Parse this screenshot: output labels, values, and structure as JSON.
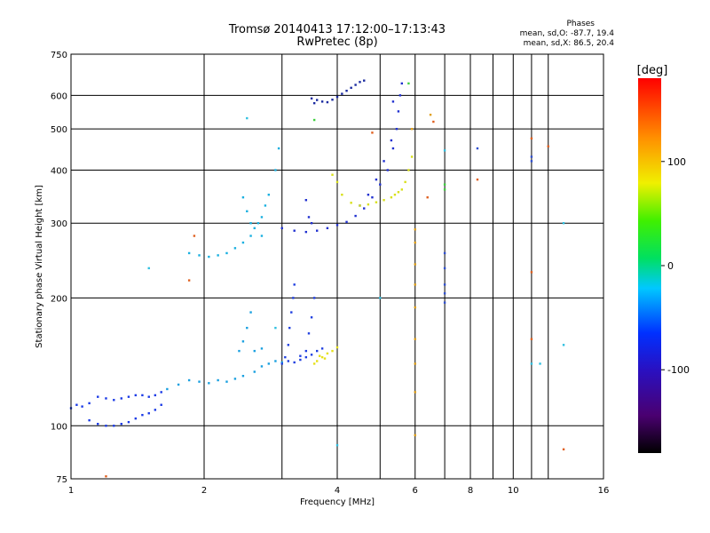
{
  "header": {
    "title_line1": "Tromsø 20140413 17:12:00–17:13:43",
    "title_line2": "RwPretec (8p)",
    "phases_heading": "Phases",
    "phases_o": "mean, sd,O: -87.7, 19.4",
    "phases_x": "mean, sd,X: 86.5, 20.4"
  },
  "colorbar": {
    "unit_label": "[deg]",
    "ticks": [
      100,
      0,
      -100
    ],
    "min": -180,
    "max": 180,
    "scale": "rainbow (black→purple→blue→cyan→green→yellow→orange→red)"
  },
  "chart_data": {
    "type": "scatter",
    "title": "Tromsø 20140413 17:12:00–17:13:43",
    "subtitle": "RwPretec (8p)",
    "xlabel": "Frequency [MHz]",
    "ylabel": "Stationary phase Virtual Height [km]",
    "x_scale": "log",
    "y_scale": "log",
    "xlim": [
      1,
      16
    ],
    "ylim": [
      75,
      750
    ],
    "x_ticks": [
      1,
      2,
      4,
      6,
      8,
      10,
      16
    ],
    "x_tick_labels": [
      "1",
      "2",
      "4",
      "6",
      "8",
      "10",
      "16"
    ],
    "y_ticks": [
      75,
      100,
      200,
      300,
      400,
      500,
      600,
      750
    ],
    "y_tick_labels": [
      "75",
      "100",
      "200",
      "300",
      "400",
      "500",
      "600",
      "750"
    ],
    "x_minor_gridlines": [
      3,
      5,
      7,
      9,
      11,
      12
    ],
    "grid": true,
    "series": [
      {
        "color": "#1a3ae6",
        "points": [
          [
            1.0,
            110
          ],
          [
            1.03,
            112
          ],
          [
            1.06,
            111
          ],
          [
            1.1,
            113
          ],
          [
            1.15,
            117
          ],
          [
            1.2,
            116
          ],
          [
            1.25,
            115
          ],
          [
            1.3,
            116
          ],
          [
            1.35,
            117
          ],
          [
            1.4,
            118
          ],
          [
            1.45,
            118
          ],
          [
            1.5,
            117
          ],
          [
            1.55,
            118
          ],
          [
            1.6,
            120
          ],
          [
            1.1,
            103
          ],
          [
            1.15,
            101
          ],
          [
            1.2,
            100
          ],
          [
            1.25,
            100
          ],
          [
            1.3,
            101
          ],
          [
            1.35,
            102
          ],
          [
            1.4,
            104
          ],
          [
            1.45,
            106
          ],
          [
            1.5,
            107
          ],
          [
            1.55,
            109
          ],
          [
            1.6,
            112
          ]
        ]
      },
      {
        "color": "#1aa0e0",
        "points": [
          [
            1.65,
            122
          ],
          [
            1.75,
            125
          ],
          [
            1.85,
            128
          ],
          [
            1.95,
            127
          ],
          [
            2.05,
            126
          ],
          [
            2.15,
            128
          ],
          [
            2.25,
            127
          ],
          [
            2.35,
            129
          ],
          [
            2.45,
            131
          ],
          [
            2.6,
            134
          ],
          [
            2.7,
            138
          ],
          [
            2.8,
            140
          ],
          [
            2.9,
            142
          ],
          [
            3.0,
            141
          ],
          [
            2.4,
            150
          ],
          [
            2.45,
            158
          ],
          [
            2.5,
            170
          ],
          [
            2.55,
            185
          ],
          [
            2.6,
            150
          ],
          [
            2.7,
            152
          ]
        ]
      },
      {
        "color": "#2040e0",
        "points": [
          [
            3.0,
            140
          ],
          [
            3.05,
            145
          ],
          [
            3.1,
            155
          ],
          [
            3.12,
            170
          ],
          [
            3.15,
            185
          ],
          [
            3.18,
            200
          ],
          [
            3.2,
            215
          ],
          [
            3.3,
            146
          ],
          [
            3.4,
            150
          ],
          [
            3.45,
            165
          ],
          [
            3.5,
            180
          ],
          [
            3.55,
            200
          ],
          [
            3.1,
            142
          ],
          [
            3.2,
            141
          ],
          [
            3.3,
            143
          ],
          [
            3.4,
            145
          ],
          [
            3.5,
            147
          ],
          [
            3.6,
            150
          ],
          [
            3.7,
            152
          ]
        ]
      },
      {
        "color": "#e6e01a",
        "points": [
          [
            3.55,
            140
          ],
          [
            3.6,
            142
          ],
          [
            3.7,
            145
          ],
          [
            3.8,
            148
          ],
          [
            3.9,
            150
          ],
          [
            4.0,
            153
          ],
          [
            3.65,
            146
          ],
          [
            3.75,
            144
          ]
        ]
      },
      {
        "color": "#1ab0e0",
        "points": [
          [
            1.85,
            255
          ],
          [
            1.95,
            252
          ],
          [
            2.05,
            250
          ],
          [
            2.15,
            252
          ],
          [
            2.25,
            255
          ],
          [
            2.35,
            262
          ],
          [
            2.45,
            270
          ],
          [
            2.55,
            280
          ],
          [
            2.6,
            292
          ],
          [
            2.65,
            300
          ],
          [
            2.7,
            310
          ],
          [
            2.75,
            330
          ],
          [
            2.8,
            350
          ],
          [
            2.9,
            400
          ],
          [
            2.95,
            450
          ],
          [
            2.5,
            320
          ],
          [
            2.45,
            345
          ],
          [
            2.55,
            300
          ],
          [
            2.7,
            280
          ]
        ]
      },
      {
        "color": "#2030d0",
        "points": [
          [
            3.0,
            292
          ],
          [
            3.2,
            288
          ],
          [
            3.4,
            286
          ],
          [
            3.6,
            288
          ],
          [
            3.8,
            292
          ],
          [
            4.0,
            297
          ],
          [
            4.2,
            302
          ],
          [
            4.4,
            312
          ],
          [
            4.6,
            325
          ],
          [
            4.8,
            345
          ],
          [
            5.0,
            370
          ],
          [
            5.2,
            400
          ],
          [
            5.35,
            450
          ],
          [
            5.45,
            500
          ],
          [
            5.5,
            550
          ],
          [
            5.55,
            600
          ],
          [
            5.6,
            640
          ],
          [
            5.35,
            580
          ],
          [
            4.5,
            330
          ],
          [
            4.7,
            350
          ],
          [
            4.9,
            380
          ],
          [
            5.1,
            420
          ],
          [
            5.3,
            470
          ],
          [
            3.4,
            340
          ],
          [
            3.45,
            310
          ],
          [
            3.5,
            300
          ]
        ]
      },
      {
        "color": "#1a2aa0",
        "points": [
          [
            3.6,
            585
          ],
          [
            3.7,
            580
          ],
          [
            3.8,
            578
          ],
          [
            3.9,
            586
          ],
          [
            4.0,
            595
          ],
          [
            4.1,
            605
          ],
          [
            4.2,
            615
          ],
          [
            4.3,
            625
          ],
          [
            4.4,
            635
          ],
          [
            4.5,
            645
          ],
          [
            4.6,
            650
          ],
          [
            3.5,
            590
          ],
          [
            3.55,
            575
          ]
        ]
      },
      {
        "color": "#d8e01a",
        "points": [
          [
            3.9,
            390
          ],
          [
            4.0,
            375
          ],
          [
            4.1,
            350
          ],
          [
            4.3,
            335
          ],
          [
            4.5,
            330
          ],
          [
            4.7,
            332
          ],
          [
            4.9,
            336
          ],
          [
            5.1,
            340
          ],
          [
            5.3,
            345
          ],
          [
            5.5,
            355
          ],
          [
            5.7,
            375
          ],
          [
            5.8,
            400
          ],
          [
            5.9,
            430
          ],
          [
            5.6,
            360
          ],
          [
            5.4,
            350
          ]
        ]
      },
      {
        "color": "#e0a01a",
        "points": [
          [
            6.0,
            290
          ],
          [
            6.0,
            270
          ],
          [
            6.0,
            240
          ],
          [
            6.0,
            215
          ],
          [
            6.0,
            190
          ],
          [
            6.0,
            160
          ],
          [
            6.0,
            140
          ],
          [
            6.0,
            120
          ],
          [
            6.0,
            95
          ],
          [
            5.9,
            500
          ],
          [
            6.5,
            540
          ]
        ]
      },
      {
        "color": "#3050d0",
        "points": [
          [
            7.0,
            255
          ],
          [
            7.0,
            235
          ],
          [
            7.0,
            215
          ],
          [
            7.0,
            205
          ],
          [
            7.0,
            195
          ],
          [
            8.3,
            450
          ],
          [
            11.0,
            420
          ],
          [
            11.0,
            430
          ]
        ]
      },
      {
        "color": "#30c0e0",
        "points": [
          [
            1.5,
            235
          ],
          [
            2.5,
            530
          ],
          [
            2.9,
            170
          ],
          [
            11.0,
            140
          ],
          [
            11.5,
            140
          ],
          [
            13.0,
            300
          ],
          [
            13.0,
            155
          ],
          [
            4.0,
            90
          ],
          [
            7.0,
            445
          ],
          [
            5.0,
            200
          ]
        ]
      },
      {
        "color": "#e06020",
        "points": [
          [
            1.85,
            220
          ],
          [
            1.9,
            280
          ],
          [
            6.6,
            520
          ],
          [
            8.3,
            380
          ],
          [
            11.0,
            475
          ],
          [
            12.0,
            455
          ],
          [
            11.0,
            230
          ],
          [
            11.0,
            160
          ],
          [
            13.0,
            88
          ],
          [
            4.8,
            490
          ],
          [
            1.2,
            76
          ],
          [
            6.4,
            345
          ]
        ]
      },
      {
        "color": "#40d040",
        "points": [
          [
            3.55,
            525
          ],
          [
            7.0,
            370
          ],
          [
            7.0,
            360
          ],
          [
            5.8,
            640
          ]
        ]
      }
    ]
  }
}
